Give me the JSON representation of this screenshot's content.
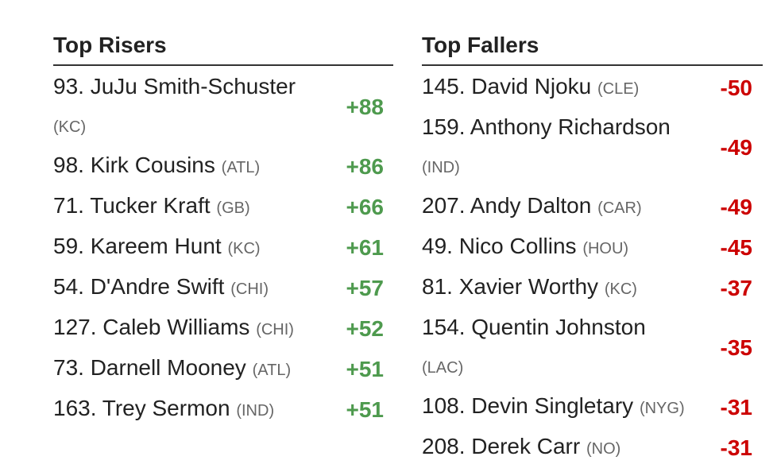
{
  "risers": {
    "title": "Top Risers",
    "rows": [
      {
        "name": "93. JuJu Smith-Schuster",
        "team": "(KC)",
        "change": "+88"
      },
      {
        "name": "98. Kirk Cousins",
        "team": "(ATL)",
        "change": "+86"
      },
      {
        "name": "71. Tucker Kraft",
        "team": "(GB)",
        "change": "+66"
      },
      {
        "name": "59. Kareem Hunt",
        "team": "(KC)",
        "change": "+61"
      },
      {
        "name": "54. D'Andre Swift",
        "team": "(CHI)",
        "change": "+57"
      },
      {
        "name": "127. Caleb Williams",
        "team": "(CHI)",
        "change": "+52"
      },
      {
        "name": "73. Darnell Mooney",
        "team": "(ATL)",
        "change": "+51"
      },
      {
        "name": "163. Trey Sermon",
        "team": "(IND)",
        "change": "+51"
      }
    ]
  },
  "fallers": {
    "title": "Top Fallers",
    "rows": [
      {
        "name": "145. David Njoku",
        "team": "(CLE)",
        "change": "-50"
      },
      {
        "name": "159. Anthony Richardson",
        "team": "(IND)",
        "change": "-49"
      },
      {
        "name": "207. Andy Dalton",
        "team": "(CAR)",
        "change": "-49"
      },
      {
        "name": "49. Nico Collins",
        "team": "(HOU)",
        "change": "-45"
      },
      {
        "name": "81. Xavier Worthy",
        "team": "(KC)",
        "change": "-37"
      },
      {
        "name": "154. Quentin Johnston",
        "team": "(LAC)",
        "change": "-35"
      },
      {
        "name": "108. Devin Singletary",
        "team": "(NYG)",
        "change": "-31"
      },
      {
        "name": "208. Derek Carr",
        "team": "(NO)",
        "change": "-31"
      }
    ]
  }
}
